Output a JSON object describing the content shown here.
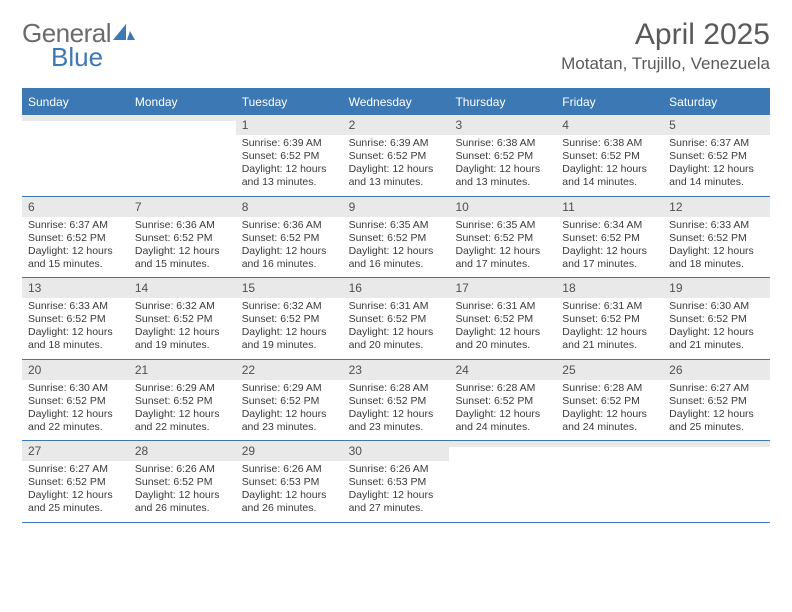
{
  "brand": {
    "part1": "General",
    "part2": "Blue"
  },
  "title": "April 2025",
  "location": "Motatan, Trujillo, Venezuela",
  "colors": {
    "accent": "#3c78b4",
    "header_text": "#ffffff",
    "daynum_bg": "#e9e9ea",
    "body_text": "#3a3a3a",
    "title_text": "#5a5a5a",
    "background": "#ffffff"
  },
  "typography": {
    "title_fontsize": 30,
    "location_fontsize": 17,
    "dayhead_fontsize": 12,
    "daynum_fontsize": 12,
    "content_fontsize": 10.5
  },
  "layout": {
    "columns": 7,
    "rows": 5,
    "cell_border": "1px solid #3c78b4"
  },
  "day_headers": [
    "Sunday",
    "Monday",
    "Tuesday",
    "Wednesday",
    "Thursday",
    "Friday",
    "Saturday"
  ],
  "weeks": [
    [
      {
        "empty": true
      },
      {
        "empty": true
      },
      {
        "day": "1",
        "sunrise": "Sunrise: 6:39 AM",
        "sunset": "Sunset: 6:52 PM",
        "daylight": "Daylight: 12 hours and 13 minutes."
      },
      {
        "day": "2",
        "sunrise": "Sunrise: 6:39 AM",
        "sunset": "Sunset: 6:52 PM",
        "daylight": "Daylight: 12 hours and 13 minutes."
      },
      {
        "day": "3",
        "sunrise": "Sunrise: 6:38 AM",
        "sunset": "Sunset: 6:52 PM",
        "daylight": "Daylight: 12 hours and 13 minutes."
      },
      {
        "day": "4",
        "sunrise": "Sunrise: 6:38 AM",
        "sunset": "Sunset: 6:52 PM",
        "daylight": "Daylight: 12 hours and 14 minutes."
      },
      {
        "day": "5",
        "sunrise": "Sunrise: 6:37 AM",
        "sunset": "Sunset: 6:52 PM",
        "daylight": "Daylight: 12 hours and 14 minutes."
      }
    ],
    [
      {
        "day": "6",
        "sunrise": "Sunrise: 6:37 AM",
        "sunset": "Sunset: 6:52 PM",
        "daylight": "Daylight: 12 hours and 15 minutes."
      },
      {
        "day": "7",
        "sunrise": "Sunrise: 6:36 AM",
        "sunset": "Sunset: 6:52 PM",
        "daylight": "Daylight: 12 hours and 15 minutes."
      },
      {
        "day": "8",
        "sunrise": "Sunrise: 6:36 AM",
        "sunset": "Sunset: 6:52 PM",
        "daylight": "Daylight: 12 hours and 16 minutes."
      },
      {
        "day": "9",
        "sunrise": "Sunrise: 6:35 AM",
        "sunset": "Sunset: 6:52 PM",
        "daylight": "Daylight: 12 hours and 16 minutes."
      },
      {
        "day": "10",
        "sunrise": "Sunrise: 6:35 AM",
        "sunset": "Sunset: 6:52 PM",
        "daylight": "Daylight: 12 hours and 17 minutes."
      },
      {
        "day": "11",
        "sunrise": "Sunrise: 6:34 AM",
        "sunset": "Sunset: 6:52 PM",
        "daylight": "Daylight: 12 hours and 17 minutes."
      },
      {
        "day": "12",
        "sunrise": "Sunrise: 6:33 AM",
        "sunset": "Sunset: 6:52 PM",
        "daylight": "Daylight: 12 hours and 18 minutes."
      }
    ],
    [
      {
        "day": "13",
        "sunrise": "Sunrise: 6:33 AM",
        "sunset": "Sunset: 6:52 PM",
        "daylight": "Daylight: 12 hours and 18 minutes."
      },
      {
        "day": "14",
        "sunrise": "Sunrise: 6:32 AM",
        "sunset": "Sunset: 6:52 PM",
        "daylight": "Daylight: 12 hours and 19 minutes."
      },
      {
        "day": "15",
        "sunrise": "Sunrise: 6:32 AM",
        "sunset": "Sunset: 6:52 PM",
        "daylight": "Daylight: 12 hours and 19 minutes."
      },
      {
        "day": "16",
        "sunrise": "Sunrise: 6:31 AM",
        "sunset": "Sunset: 6:52 PM",
        "daylight": "Daylight: 12 hours and 20 minutes."
      },
      {
        "day": "17",
        "sunrise": "Sunrise: 6:31 AM",
        "sunset": "Sunset: 6:52 PM",
        "daylight": "Daylight: 12 hours and 20 minutes."
      },
      {
        "day": "18",
        "sunrise": "Sunrise: 6:31 AM",
        "sunset": "Sunset: 6:52 PM",
        "daylight": "Daylight: 12 hours and 21 minutes."
      },
      {
        "day": "19",
        "sunrise": "Sunrise: 6:30 AM",
        "sunset": "Sunset: 6:52 PM",
        "daylight": "Daylight: 12 hours and 21 minutes."
      }
    ],
    [
      {
        "day": "20",
        "sunrise": "Sunrise: 6:30 AM",
        "sunset": "Sunset: 6:52 PM",
        "daylight": "Daylight: 12 hours and 22 minutes."
      },
      {
        "day": "21",
        "sunrise": "Sunrise: 6:29 AM",
        "sunset": "Sunset: 6:52 PM",
        "daylight": "Daylight: 12 hours and 22 minutes."
      },
      {
        "day": "22",
        "sunrise": "Sunrise: 6:29 AM",
        "sunset": "Sunset: 6:52 PM",
        "daylight": "Daylight: 12 hours and 23 minutes."
      },
      {
        "day": "23",
        "sunrise": "Sunrise: 6:28 AM",
        "sunset": "Sunset: 6:52 PM",
        "daylight": "Daylight: 12 hours and 23 minutes."
      },
      {
        "day": "24",
        "sunrise": "Sunrise: 6:28 AM",
        "sunset": "Sunset: 6:52 PM",
        "daylight": "Daylight: 12 hours and 24 minutes."
      },
      {
        "day": "25",
        "sunrise": "Sunrise: 6:28 AM",
        "sunset": "Sunset: 6:52 PM",
        "daylight": "Daylight: 12 hours and 24 minutes."
      },
      {
        "day": "26",
        "sunrise": "Sunrise: 6:27 AM",
        "sunset": "Sunset: 6:52 PM",
        "daylight": "Daylight: 12 hours and 25 minutes."
      }
    ],
    [
      {
        "day": "27",
        "sunrise": "Sunrise: 6:27 AM",
        "sunset": "Sunset: 6:52 PM",
        "daylight": "Daylight: 12 hours and 25 minutes."
      },
      {
        "day": "28",
        "sunrise": "Sunrise: 6:26 AM",
        "sunset": "Sunset: 6:52 PM",
        "daylight": "Daylight: 12 hours and 26 minutes."
      },
      {
        "day": "29",
        "sunrise": "Sunrise: 6:26 AM",
        "sunset": "Sunset: 6:53 PM",
        "daylight": "Daylight: 12 hours and 26 minutes."
      },
      {
        "day": "30",
        "sunrise": "Sunrise: 6:26 AM",
        "sunset": "Sunset: 6:53 PM",
        "daylight": "Daylight: 12 hours and 27 minutes."
      },
      {
        "empty": true
      },
      {
        "empty": true
      },
      {
        "empty": true
      }
    ]
  ]
}
